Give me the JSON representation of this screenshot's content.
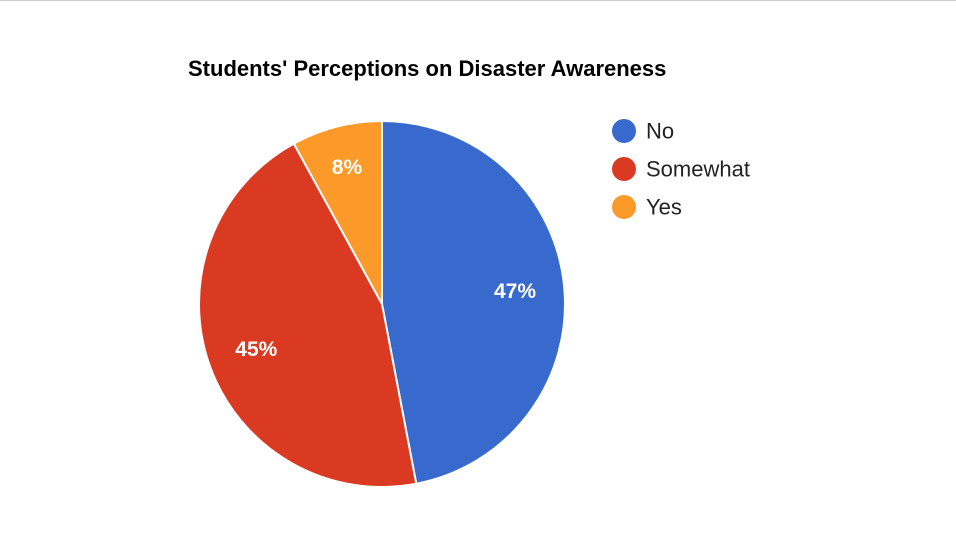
{
  "chart_data": {
    "type": "pie",
    "title": "Students' Perceptions on Disaster Awareness",
    "categories": [
      "No",
      "Somewhat",
      "Yes"
    ],
    "values": [
      47,
      45,
      8
    ],
    "data_labels": [
      "47%",
      "45%",
      "8%"
    ],
    "colors": [
      "#3869cc",
      "#d93a21",
      "#fb9a29"
    ],
    "legend_position": "right"
  }
}
